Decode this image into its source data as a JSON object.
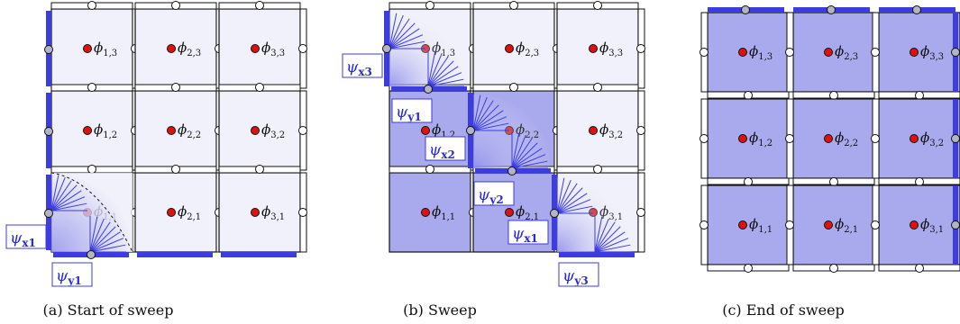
{
  "panels": [
    {
      "caption": "(a) Start of sweep",
      "cells": [
        [
          "ϕ1,1",
          "ϕ2,1",
          "ϕ3,1"
        ],
        [
          "ϕ1,2",
          "ϕ2,2",
          "ϕ3,2"
        ],
        [
          "ϕ1,3",
          "ϕ2,3",
          "ϕ3,3"
        ]
      ],
      "psi_labels": [
        "ψx1",
        "ψy1"
      ]
    },
    {
      "caption": "(b) Sweep",
      "cells": [
        [
          "ϕ1,1",
          "ϕ2,1",
          "ϕ3,1"
        ],
        [
          "ϕ1,2",
          "ϕ2,2",
          "ϕ3,2"
        ],
        [
          "ϕ1,3",
          "ϕ2,3",
          "ϕ3,3"
        ]
      ],
      "psi_labels": [
        "ψx3",
        "ψy1",
        "ψx2",
        "ψy2",
        "ψx1",
        "ψy3"
      ]
    },
    {
      "caption": "(c) End of sweep",
      "cells": [
        [
          "ϕ1,1",
          "ϕ2,1",
          "ϕ3,1"
        ],
        [
          "ϕ1,2",
          "ϕ2,2",
          "ϕ3,2"
        ],
        [
          "ϕ1,3",
          "ϕ2,3",
          "ϕ3,3"
        ]
      ],
      "psi_labels": []
    }
  ],
  "colors": {
    "light_cell": "#f1f1fb",
    "swept_cell": "#a9a9ee",
    "face_flux": "#3c3cdf",
    "cell_center": "#dd1111",
    "face_node": "#b4b4c8"
  }
}
